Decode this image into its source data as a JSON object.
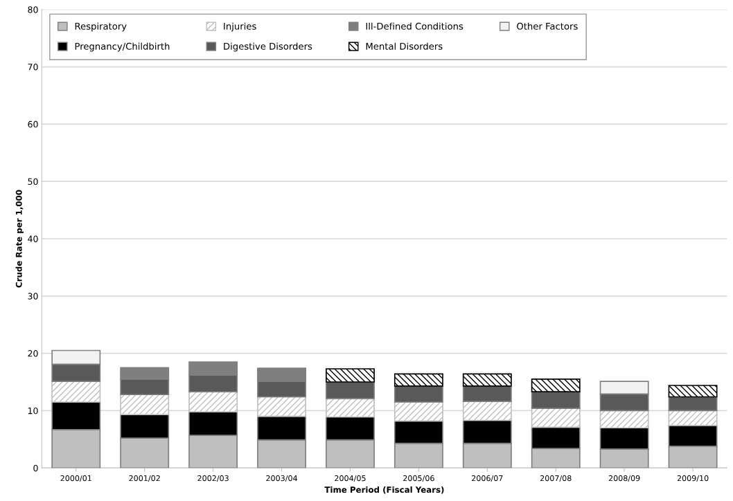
{
  "chart_data": {
    "type": "bar",
    "stacked": true,
    "xlabel": "Time Period (Fiscal Years)",
    "ylabel": "Crude Rate per 1,000",
    "categories": [
      "2000/01",
      "2001/02",
      "2002/03",
      "2003/04",
      "2004/05",
      "2005/06",
      "2006/07",
      "2007/08",
      "2008/09",
      "2009/10"
    ],
    "series": [
      {
        "name": "Respiratory",
        "color": "#bfbfbf",
        "values": [
          6.7,
          5.2,
          5.7,
          4.9,
          4.9,
          4.3,
          4.3,
          3.4,
          3.3,
          3.8
        ]
      },
      {
        "name": "Pregnancy/Childbirth",
        "color": "#000000",
        "values": [
          4.8,
          4.1,
          4.1,
          4.1,
          4.0,
          3.9,
          4.0,
          3.7,
          3.7,
          3.6
        ]
      },
      {
        "name": "Injuries",
        "color": "#bfbfbf",
        "values": [
          3.6,
          3.5,
          3.5,
          3.4,
          3.2,
          3.3,
          3.3,
          3.3,
          3.0,
          2.6
        ]
      },
      {
        "name": "Digestive Disorders",
        "color": "#595959",
        "values": [
          3.0,
          2.7,
          2.9,
          2.7,
          2.9,
          2.8,
          2.7,
          2.9,
          2.9,
          2.4
        ]
      },
      {
        "name": "Ill-Defined Conditions",
        "color": "#7f7f7f",
        "values": [
          null,
          2.0,
          2.3,
          2.3,
          null,
          null,
          null,
          null,
          null,
          null
        ]
      },
      {
        "name": "Mental Disorders",
        "color": "#000000",
        "values": [
          null,
          null,
          null,
          null,
          2.3,
          2.1,
          2.1,
          2.2,
          null,
          2.0
        ]
      },
      {
        "name": "Other Factors",
        "color": "#f2f2f2",
        "values": [
          2.4,
          null,
          null,
          null,
          null,
          null,
          null,
          null,
          2.2,
          null
        ]
      }
    ],
    "ylim": [
      0,
      80
    ],
    "yticks": [
      0,
      10,
      20,
      30,
      40,
      50,
      60,
      70,
      80
    ],
    "grid": "y",
    "legend": "top left"
  }
}
